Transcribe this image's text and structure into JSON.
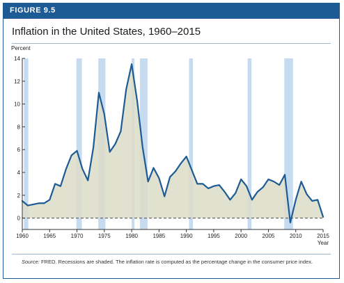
{
  "figure": {
    "label": "FIGURE 9.5",
    "title": "Inflation in the United States, 1960–2015",
    "source_label": "Source:",
    "source_text": "FRED. Recessions are shaded. The inflation rate is computed as the percentage change in the consumer price index."
  },
  "colors": {
    "header": "#1c5b94",
    "line": "#1c5b94",
    "area_fill": "#dcdcc8",
    "recession": "#c6dbf0",
    "zero_line": "#666666"
  },
  "chart_data": {
    "type": "area",
    "ylabel": "Percent",
    "xlabel": "Year",
    "xlim": [
      1960,
      2015
    ],
    "ylim": [
      -1,
      14
    ],
    "x_ticks": [
      1960,
      1965,
      1970,
      1975,
      1980,
      1985,
      1990,
      1995,
      2000,
      2005,
      2010,
      2015
    ],
    "y_ticks": [
      0,
      2,
      4,
      6,
      8,
      10,
      12,
      14
    ],
    "recessions": [
      [
        1960.3,
        1961.1
      ],
      [
        1969.9,
        1970.9
      ],
      [
        1973.9,
        1975.2
      ],
      [
        1980.0,
        1980.5
      ],
      [
        1981.5,
        1982.9
      ],
      [
        1990.5,
        1991.2
      ],
      [
        2001.2,
        2001.9
      ],
      [
        2007.9,
        2009.5
      ]
    ],
    "reference_line": 0,
    "series": [
      {
        "values": [
          [
            1960,
            1.5
          ],
          [
            1961,
            1.1
          ],
          [
            1962,
            1.2
          ],
          [
            1963,
            1.3
          ],
          [
            1964,
            1.3
          ],
          [
            1965,
            1.6
          ],
          [
            1966,
            3.0
          ],
          [
            1967,
            2.8
          ],
          [
            1968,
            4.3
          ],
          [
            1969,
            5.5
          ],
          [
            1970,
            5.9
          ],
          [
            1971,
            4.3
          ],
          [
            1972,
            3.3
          ],
          [
            1973,
            6.2
          ],
          [
            1974,
            11.0
          ],
          [
            1975,
            9.1
          ],
          [
            1976,
            5.8
          ],
          [
            1977,
            6.5
          ],
          [
            1978,
            7.6
          ],
          [
            1979,
            11.3
          ],
          [
            1980,
            13.5
          ],
          [
            1981,
            10.3
          ],
          [
            1982,
            6.2
          ],
          [
            1983,
            3.2
          ],
          [
            1984,
            4.4
          ],
          [
            1985,
            3.5
          ],
          [
            1986,
            1.9
          ],
          [
            1987,
            3.6
          ],
          [
            1988,
            4.1
          ],
          [
            1989,
            4.8
          ],
          [
            1990,
            5.4
          ],
          [
            1991,
            4.2
          ],
          [
            1992,
            3.0
          ],
          [
            1993,
            3.0
          ],
          [
            1994,
            2.6
          ],
          [
            1995,
            2.8
          ],
          [
            1996,
            2.9
          ],
          [
            1997,
            2.3
          ],
          [
            1998,
            1.6
          ],
          [
            1999,
            2.2
          ],
          [
            2000,
            3.4
          ],
          [
            2001,
            2.8
          ],
          [
            2002,
            1.6
          ],
          [
            2003,
            2.3
          ],
          [
            2004,
            2.7
          ],
          [
            2005,
            3.4
          ],
          [
            2006,
            3.2
          ],
          [
            2007,
            2.9
          ],
          [
            2008,
            3.8
          ],
          [
            2009,
            -0.4
          ],
          [
            2010,
            1.6
          ],
          [
            2011,
            3.2
          ],
          [
            2012,
            2.1
          ],
          [
            2013,
            1.5
          ],
          [
            2014,
            1.6
          ],
          [
            2015,
            0.1
          ]
        ]
      }
    ]
  }
}
